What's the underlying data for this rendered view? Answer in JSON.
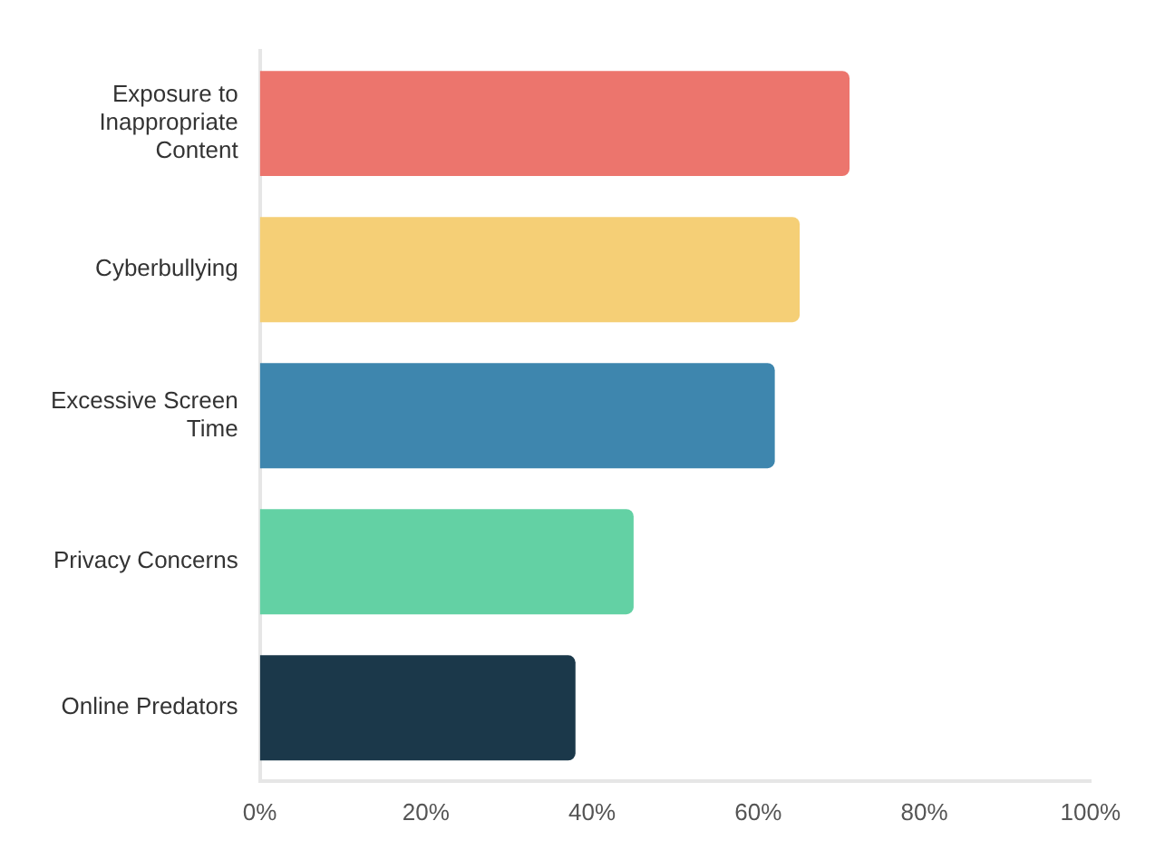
{
  "chart_data": {
    "type": "bar",
    "orientation": "horizontal",
    "categories": [
      "Exposure to Inappropriate Content",
      "Cyberbullying",
      "Excessive Screen Time",
      "Privacy Concerns",
      "Online Predators"
    ],
    "values": [
      71,
      65,
      62,
      45,
      38
    ],
    "colors": [
      "#ec756d",
      "#f5cf76",
      "#3e86ae",
      "#63d1a4",
      "#1b384a"
    ],
    "xlim": [
      0,
      100
    ],
    "xticks": [
      {
        "value": 0,
        "label": "0%"
      },
      {
        "value": 20,
        "label": "20%"
      },
      {
        "value": 40,
        "label": "40%"
      },
      {
        "value": 60,
        "label": "60%"
      },
      {
        "value": 80,
        "label": "80%"
      },
      {
        "value": 100,
        "label": "100%"
      }
    ],
    "grid": false,
    "legend": false
  }
}
